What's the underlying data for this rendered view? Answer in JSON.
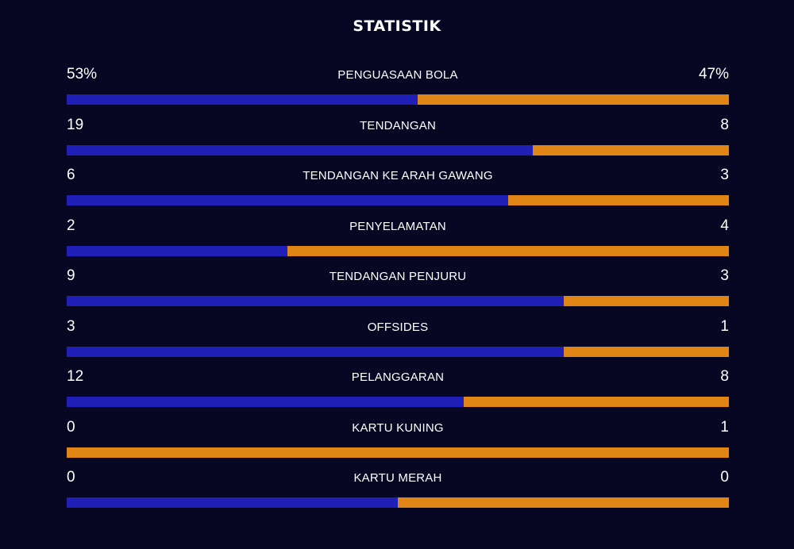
{
  "title": "STATISTIK",
  "colors": {
    "background": "#070723",
    "home_bar": "#2020b8",
    "away_bar": "#df8415",
    "text": "#ffffff"
  },
  "stats": [
    {
      "label": "PENGUASAAN BOLA",
      "home_display": "53%",
      "away_display": "47%",
      "home_share": 0.53
    },
    {
      "label": "TENDANGAN",
      "home_display": "19",
      "away_display": "8",
      "home_share": 0.7037
    },
    {
      "label": "TENDANGAN KE ARAH GAWANG",
      "home_display": "6",
      "away_display": "3",
      "home_share": 0.6667
    },
    {
      "label": "PENYELAMATAN",
      "home_display": "2",
      "away_display": "4",
      "home_share": 0.3333
    },
    {
      "label": "TENDANGAN PENJURU",
      "home_display": "9",
      "away_display": "3",
      "home_share": 0.75
    },
    {
      "label": "OFFSIDES",
      "home_display": "3",
      "away_display": "1",
      "home_share": 0.75
    },
    {
      "label": "PELANGGARAN",
      "home_display": "12",
      "away_display": "8",
      "home_share": 0.6
    },
    {
      "label": "KARTU KUNING",
      "home_display": "0",
      "away_display": "1",
      "home_share": 0
    },
    {
      "label": "KARTU MERAH",
      "home_display": "0",
      "away_display": "0",
      "home_share": 0.5
    }
  ]
}
